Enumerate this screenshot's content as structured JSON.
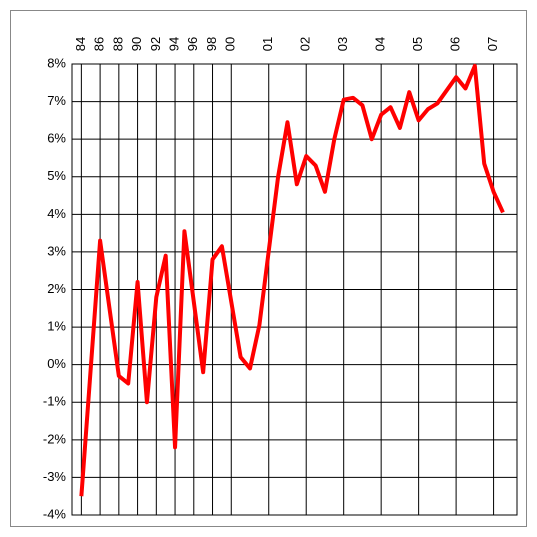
{
  "chart_data": {
    "type": "line",
    "x": [
      0,
      2,
      4,
      5,
      6,
      7,
      8,
      9,
      10,
      11,
      13,
      14,
      15,
      17,
      18,
      19,
      21,
      22,
      23,
      24,
      25,
      26,
      27,
      28,
      29,
      30,
      31,
      32,
      33,
      34,
      35,
      36,
      37,
      38,
      39,
      40,
      41,
      42,
      43,
      44,
      45
    ],
    "series": [
      {
        "color": "#ff0000",
        "values": [
          -3.5,
          3.3,
          -0.3,
          -0.5,
          2.2,
          -1.0,
          1.8,
          2.9,
          -2.2,
          3.55,
          -0.2,
          2.8,
          3.15,
          0.2,
          -0.1,
          1.05,
          5.0,
          6.45,
          4.8,
          5.55,
          5.3,
          4.6,
          6.0,
          7.05,
          7.1,
          6.9,
          6.0,
          6.65,
          6.85,
          6.3,
          7.25,
          6.5,
          6.8,
          6.95,
          7.3,
          7.65,
          7.35,
          7.95,
          5.35,
          4.6,
          4.05
        ]
      }
    ],
    "xlim": [
      -1,
      46.5
    ],
    "xticks": [
      {
        "value": 0,
        "label": "84"
      },
      {
        "value": 2,
        "label": "86"
      },
      {
        "value": 4,
        "label": "88"
      },
      {
        "value": 6,
        "label": "90"
      },
      {
        "value": 8,
        "label": "92"
      },
      {
        "value": 10,
        "label": "94"
      },
      {
        "value": 12,
        "label": "96"
      },
      {
        "value": 14,
        "label": "98"
      },
      {
        "value": 16,
        "label": "00"
      },
      {
        "value": 20,
        "label": "01"
      },
      {
        "value": 24,
        "label": "02"
      },
      {
        "value": 28,
        "label": "03"
      },
      {
        "value": 32,
        "label": "04"
      },
      {
        "value": 36,
        "label": "05"
      },
      {
        "value": 40,
        "label": "06"
      },
      {
        "value": 44,
        "label": "07"
      }
    ],
    "ylim": [
      -4,
      8
    ],
    "yticks": [
      {
        "value": -4,
        "label": "-4%"
      },
      {
        "value": -3,
        "label": "-3%"
      },
      {
        "value": -2,
        "label": "-2%"
      },
      {
        "value": -1,
        "label": "-1%"
      },
      {
        "value": 0,
        "label": "0%"
      },
      {
        "value": 1,
        "label": "1%"
      },
      {
        "value": 2,
        "label": "2%"
      },
      {
        "value": 3,
        "label": "3%"
      },
      {
        "value": 4,
        "label": "4%"
      },
      {
        "value": 5,
        "label": "5%"
      },
      {
        "value": 6,
        "label": "6%"
      },
      {
        "value": 7,
        "label": "7%"
      },
      {
        "value": 8,
        "label": "8%"
      }
    ],
    "grid": true
  }
}
